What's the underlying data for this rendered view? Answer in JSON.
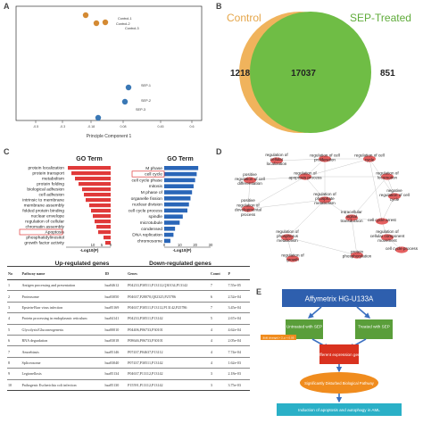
{
  "panels": {
    "a": "A",
    "b": "B",
    "c": "C",
    "d": "D",
    "e": "E"
  },
  "pca": {
    "xlabel": "Principle Component 1",
    "x_ticks": [
      "-0.5",
      "-0.3",
      "-0.18",
      "0.08",
      "0.45",
      "0.6"
    ],
    "points": [
      {
        "label": "Control-1",
        "group": "control"
      },
      {
        "label": "Control-2",
        "group": "control"
      },
      {
        "label": "Control-3",
        "group": "control"
      },
      {
        "label": "SEP-1",
        "group": "sep"
      },
      {
        "label": "SEP-2",
        "group": "sep"
      },
      {
        "label": "SEP-3",
        "group": "sep"
      }
    ],
    "colors": {
      "control": "#d48a33",
      "sep": "#3a78b5"
    }
  },
  "venn": {
    "control_label": "Control",
    "sep_label": "SEP-Treated",
    "left_only": "1218",
    "overlap": "17037",
    "right_only": "851",
    "colors": {
      "control": "#f0b35c",
      "sep": "#74c043",
      "overlap": "#6bb540"
    }
  },
  "go_up": {
    "title": "GO Term",
    "terms": [
      "protein localization",
      "protein transport",
      "metabolism",
      "protein folding",
      "biological adhesion",
      "cell adhesion",
      "intrinsic to membrane",
      "membrane assembly",
      "folded protein binding",
      "nuclear envelope",
      "regulation of cellular",
      "chromatin assembly",
      "Apoptosis",
      "phosphatidylinositol",
      "growth factor activity"
    ],
    "values": [
      24,
      22,
      20,
      18,
      16,
      15,
      14,
      12,
      11,
      10,
      9,
      8,
      7,
      4,
      3
    ],
    "axis_label": "-Log10(P)",
    "ticks": [
      "10",
      "5",
      "0"
    ],
    "caption": "Up-regulated genes",
    "color": "#e03a3a"
  },
  "go_down": {
    "title": "GO Term",
    "terms": [
      "M phase",
      "cell cycle",
      "cell cycle phase",
      "mitosis",
      "M phase of",
      "organelle fission",
      "nuclear division",
      "cell cycle process",
      "spindle",
      "microtubule",
      "condensed",
      "DNA replication",
      "chromosome"
    ],
    "values": [
      22,
      21,
      20,
      19,
      18,
      17,
      16,
      15,
      12,
      10,
      7,
      6,
      4
    ],
    "axis_label": "-Log10(P)",
    "ticks": [
      "0",
      "10",
      "20",
      "30"
    ],
    "caption": "Down-regulated genes",
    "color": "#2a66b8"
  },
  "network": {
    "nodes": [
      "regulation of cellular localization",
      "regulation of cell proliferation",
      "regulation of cell cycle",
      "positive regulation of cell differentiation",
      "regulation of apoptosis process",
      "regulation of locomotion",
      "negative regulation of cell cycle",
      "positive regulation of developmental process",
      "regulation of phosphate metabolism",
      "intracellular signal transduction",
      "cell cycle arrest",
      "regulation of cellular component movement",
      "regulation of phosphorus metabolism",
      "regulation of growth",
      "cell cycle process",
      "protein phosphorylation"
    ]
  },
  "kegg_table": {
    "headers": [
      "No",
      "Pathway name",
      "ID",
      "Genes",
      "Count",
      "P"
    ],
    "rows": [
      [
        "1",
        "Antigen processing and presentation",
        "hsa04612",
        "P04233,P30511,P13112,Q30134,P13142",
        "7",
        "7.55e-05"
      ],
      [
        "2",
        "Proteasome",
        "hsa03050",
        "P04637,P28070,Q02325,P25786",
        "6",
        "2.52e-04"
      ],
      [
        "3",
        "Epstein-Barr virus infection",
        "hsa05169",
        "P04637,P30511,P13112,P13142,P25786",
        "7",
        "3.45e-04"
      ],
      [
        "4",
        "Protein processing in endoplasmic reticulum",
        "hsa04141",
        "P04233,P30511,P13142",
        "5",
        "2.67e-04"
      ],
      [
        "5",
        "Glycolysis/Gluconeogenesis",
        "hsa00010",
        "P04406,P06733,P30101",
        "4",
        "4.62e-04"
      ],
      [
        "6",
        "RNA degradation",
        "hsa03018",
        "P08646,P06733,P30101",
        "4",
        "2.05e-04"
      ],
      [
        "7",
        "Amoebiasis",
        "hsa05146",
        "P07437,P04637,P13112",
        "4",
        "7.74e-04"
      ],
      [
        "8",
        "Spliceosome",
        "hsa03040",
        "P07437,P30511,P13142",
        "4",
        "1.62e-03"
      ],
      [
        "9",
        "Legionellosis",
        "hsa05134",
        "P04637,P13112,P13142",
        "3",
        "2.18e-03"
      ],
      [
        "10",
        "Pathogenic Escherichia coli infection",
        "hsa05130",
        "P15591,P13112,P13142",
        "3",
        "3.75e-03"
      ]
    ]
  },
  "flowchart": {
    "top": "Affymetrix HG-U133A",
    "left": "Untreated with SEP",
    "right": "Treated with SEP",
    "criteria": "|fold change| > 2, p < 0.05",
    "middle": "Different expression gene",
    "pathway": "Significantly Disturbed Biological Pathway",
    "bottom": "Induction of apoptosis and autophagy in AML",
    "colors": {
      "top": "#2e5fae",
      "green": "#5a9e3a",
      "red": "#d9321f",
      "orange": "#f08c1e",
      "cyan": "#2ab0c7"
    }
  }
}
